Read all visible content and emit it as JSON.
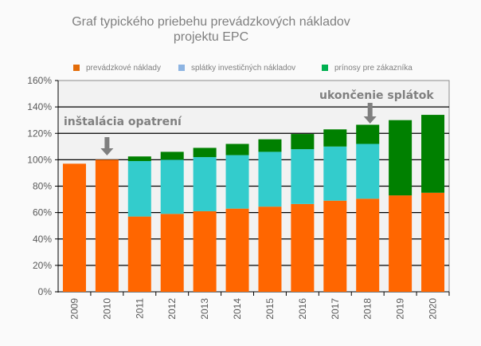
{
  "chart_data": {
    "type": "bar",
    "stacked": true,
    "title": "Graf typického priebehu prevádzkových  nákladov projektu EPC",
    "title_lines": [
      "Graf typického priebehu prevádzkových  nákladov",
      "projektu EPC"
    ],
    "categories": [
      "2009",
      "2010",
      "2011",
      "2012",
      "2013",
      "2014",
      "2015",
      "2016",
      "2017",
      "2018",
      "2019",
      "2020"
    ],
    "series": [
      {
        "name": "prevádzkové náklady",
        "color": "#FF6600",
        "legend_color": "#E36C09",
        "values": [
          97,
          100,
          57,
          59,
          61,
          63,
          64.5,
          66.5,
          69,
          70.5,
          73,
          75
        ]
      },
      {
        "name": "splátky investičných nákladov",
        "color": "#33CCCC",
        "legend_color": "#8DB4E2",
        "values": [
          0,
          0,
          42,
          41,
          41,
          40.5,
          41.5,
          41.5,
          41,
          41.5,
          0,
          0
        ]
      },
      {
        "name": "prínosy pre zákazníka",
        "color": "#008000",
        "legend_color": "#00B050",
        "values": [
          0,
          0,
          3.5,
          6,
          7,
          8.5,
          9.5,
          11.5,
          13,
          14.5,
          57,
          59
        ]
      }
    ],
    "ylim": [
      0,
      160
    ],
    "yticks": [
      "0%",
      "20%",
      "40%",
      "60%",
      "80%",
      "100%",
      "120%",
      "140%",
      "160%"
    ],
    "grid": true,
    "legend_position": "top",
    "annotations": [
      {
        "text": "inštalácia opatrení",
        "category": "2010"
      },
      {
        "text": "ukončenie splátok",
        "category": "2018"
      }
    ]
  }
}
